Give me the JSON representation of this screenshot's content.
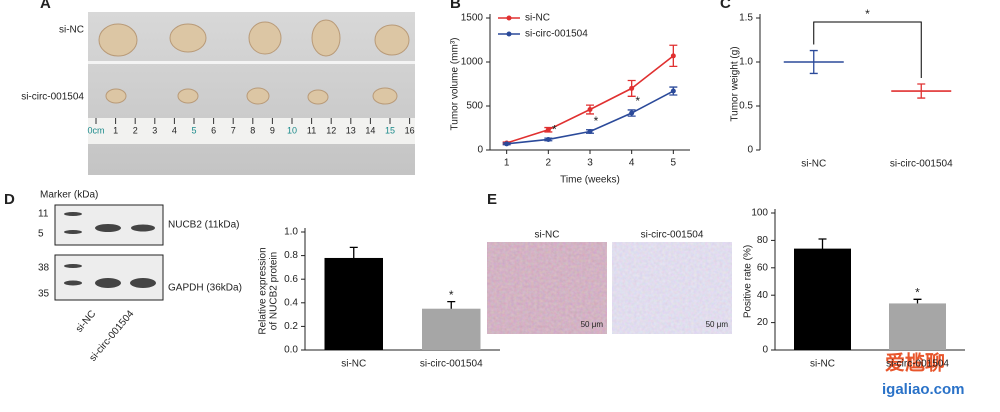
{
  "panels": {
    "a": {
      "label": "A",
      "rows": [
        "si-NC",
        "si-circ-001504"
      ],
      "ruler": [
        "0cm",
        "1",
        "2",
        "3",
        "4",
        "5",
        "6",
        "7",
        "8",
        "9",
        "10",
        "11",
        "12",
        "13",
        "14",
        "15",
        "16"
      ]
    },
    "d": {
      "label": "D",
      "marker": "Marker (kDa)",
      "marker_sizes": [
        "11",
        "5",
        "38",
        "35"
      ],
      "bands": [
        "NUCB2 (11kDa)",
        "GAPDH (36kDa)"
      ],
      "lanes": [
        "si-NC",
        "si-circ-001504"
      ]
    },
    "e": {
      "label": "E",
      "images": [
        "si-NC",
        "si-circ-001504"
      ],
      "scale": [
        "50 μm",
        "50 μm"
      ]
    },
    "watermark": [
      "爱尴聊",
      "igaliao.com"
    ]
  },
  "chart_data": [
    {
      "type": "line",
      "panel": "B",
      "xlabel": "Time (weeks)",
      "ylabel": "Tumor volume (mm³)",
      "x": [
        1,
        2,
        3,
        4,
        5
      ],
      "xlim": [
        0.6,
        5.4
      ],
      "xticks": [
        1,
        2,
        3,
        4,
        5
      ],
      "ylim": [
        0,
        1500
      ],
      "yticks": [
        0,
        500,
        1000,
        1500
      ],
      "series": [
        {
          "name": "si-NC",
          "color": "#e03030",
          "values": [
            80,
            230,
            460,
            700,
            1070
          ],
          "errors": [
            10,
            25,
            50,
            90,
            120
          ]
        },
        {
          "name": "si-circ-001504",
          "color": "#2b4a9a",
          "values": [
            70,
            120,
            210,
            420,
            670
          ],
          "errors": [
            10,
            15,
            20,
            35,
            45
          ]
        }
      ],
      "annotations": [
        "*",
        "*",
        "*"
      ]
    },
    {
      "type": "errorbar",
      "panel": "C",
      "ylabel": "Tumor weight (g)",
      "categories": [
        "si-NC",
        "si-circ-001504"
      ],
      "values": [
        1.0,
        0.67
      ],
      "errors": [
        0.13,
        0.08
      ],
      "colors": [
        "#2b4a9a",
        "#e03030"
      ],
      "ylim": [
        0,
        1.5
      ],
      "yticks": [
        0,
        0.5,
        {
          "value": 1,
          "label": "1.0"
        },
        1.5
      ],
      "annotations": [
        "*"
      ]
    },
    {
      "type": "bar",
      "ylabel": [
        "Relative expression",
        "of NUCB2 protein"
      ],
      "categories": [
        "si-NC",
        "si-circ-001504"
      ],
      "values": [
        0.78,
        0.35
      ],
      "errors": [
        0.09,
        0.06
      ],
      "colors": [
        "#000000",
        "#a6a6a6"
      ],
      "ylim": [
        0,
        1.0
      ],
      "yticks": [
        {
          "value": 0,
          "label": "0.0"
        },
        0.2,
        0.4,
        0.6,
        0.8,
        {
          "value": 1,
          "label": "1.0"
        }
      ],
      "annotations": [
        "*"
      ]
    },
    {
      "type": "bar",
      "ylabel": "Positive rate (%)",
      "categories": [
        "si-NC",
        "si-circ-001504"
      ],
      "values": [
        74,
        34
      ],
      "errors": [
        7,
        3
      ],
      "colors": [
        "#000000",
        "#a6a6a6"
      ],
      "ylim": [
        0,
        100
      ],
      "yticks": [
        0,
        20,
        40,
        60,
        80,
        100
      ],
      "annotations": [
        "*"
      ]
    }
  ]
}
